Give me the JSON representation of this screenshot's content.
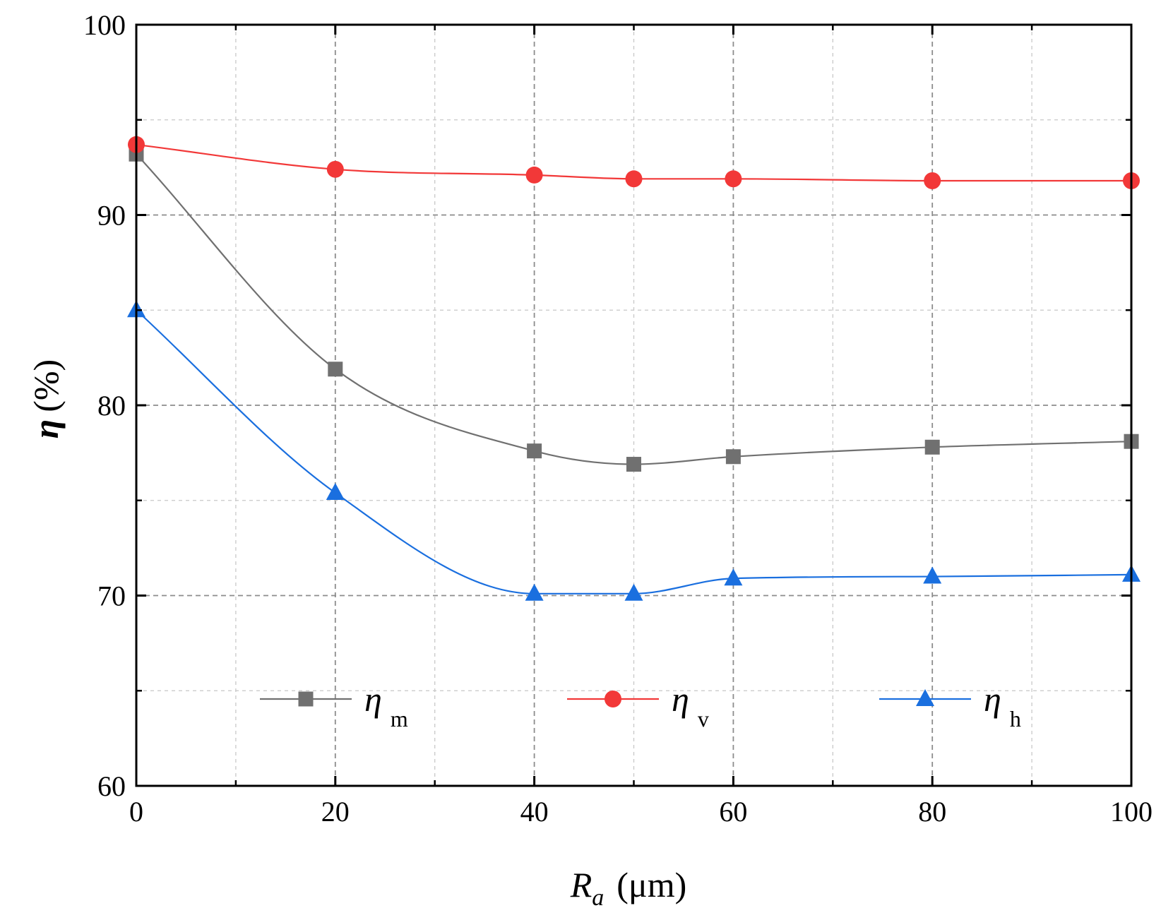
{
  "chart_data": {
    "type": "line",
    "title": "",
    "xlabel": {
      "main": "R",
      "sub": "a",
      "unit": "(μm)"
    },
    "ylabel": {
      "symbol": "η",
      "unit": "(%)"
    },
    "xlim": [
      0,
      100
    ],
    "ylim": [
      60,
      100
    ],
    "x_major_ticks": [
      0,
      20,
      40,
      60,
      80,
      100
    ],
    "x_major_tick_labels": [
      "0",
      "20",
      "40",
      "60",
      "80",
      "100"
    ],
    "x_minor_ticks": [
      10,
      30,
      50,
      70,
      90
    ],
    "y_major_ticks": [
      60,
      70,
      80,
      90,
      100
    ],
    "y_major_tick_labels": [
      "60",
      "70",
      "80",
      "90",
      "100"
    ],
    "y_minor_ticks": [
      65,
      75,
      85,
      95
    ],
    "grid": true,
    "legend_position": "bottom-inside",
    "x": [
      0,
      20,
      40,
      50,
      60,
      80,
      100
    ],
    "series": [
      {
        "name": "η m",
        "symbol": "η",
        "subscript": "m",
        "marker": "square",
        "color": "#707070",
        "values": [
          93.2,
          81.9,
          77.6,
          76.9,
          77.3,
          77.8,
          78.1
        ]
      },
      {
        "name": "η v",
        "symbol": "η",
        "subscript": "v",
        "marker": "circle",
        "color": "#f23838",
        "values": [
          93.7,
          92.4,
          92.1,
          91.9,
          91.9,
          91.8,
          91.8
        ]
      },
      {
        "name": "η h",
        "symbol": "η",
        "subscript": "h",
        "marker": "triangle",
        "color": "#1a6fdf",
        "values": [
          85.0,
          75.4,
          70.1,
          70.1,
          70.9,
          71.0,
          71.1
        ]
      }
    ]
  }
}
